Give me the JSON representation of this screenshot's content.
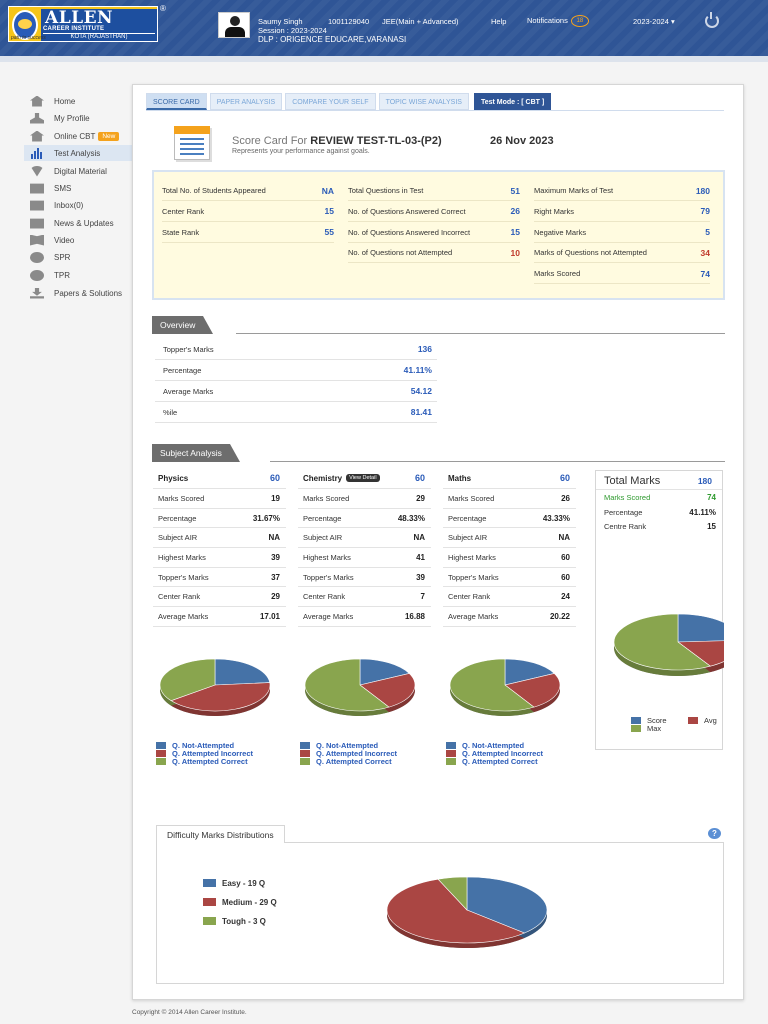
{
  "header": {
    "logo_big": "ALLEN",
    "logo_mid": "CAREER INSTITUTE",
    "logo_small": "KOTA (RAJASTHAN)",
    "logo_tagline": "path to success",
    "reg_mark": "®",
    "student_name": "Saumy Singh",
    "roll_no": "1001129040",
    "course": "JEE(Main + Advanced)",
    "session": "Session : 2023-2024",
    "center": "DLP : ORIGENCE EDUCARE,VARANASI",
    "help": "Help",
    "notifications": "Notifications",
    "notif_count": "18",
    "session_select": "2023-2024 ▾"
  },
  "sidebar": {
    "items": [
      {
        "label": "Home",
        "icon": "home-icon"
      },
      {
        "label": "My Profile",
        "icon": "user-icon"
      },
      {
        "label": "Online CBT",
        "icon": "home-icon",
        "badge": "New"
      },
      {
        "label": "Test Analysis",
        "icon": "bar-chart-icon",
        "active": true
      },
      {
        "label": "Digital Material",
        "icon": "wifi-icon"
      },
      {
        "label": "SMS",
        "icon": "mail-icon"
      },
      {
        "label": "Inbox(0)",
        "icon": "mail-icon"
      },
      {
        "label": "News & Updates",
        "icon": "mail-icon"
      },
      {
        "label": "Video",
        "icon": "book-icon"
      },
      {
        "label": "SPR",
        "icon": "pie-icon"
      },
      {
        "label": "TPR",
        "icon": "pie-icon"
      },
      {
        "label": "Papers & Solutions",
        "icon": "download-icon"
      }
    ]
  },
  "tabs": [
    {
      "label": "SCORE CARD",
      "active": true
    },
    {
      "label": "PAPER ANALYSIS"
    },
    {
      "label": "COMPARE YOUR SELF"
    },
    {
      "label": "TOPIC WISE ANALYSIS"
    },
    {
      "label": "Test Mode : [ CBT ]"
    }
  ],
  "scorecard": {
    "title_prefix": "Score Card For ",
    "test_name": "REVIEW TEST-TL-03-(P2)",
    "date": "26 Nov 2023",
    "subtitle": "Represents your performance against goals."
  },
  "summary": {
    "col1": [
      {
        "label": "Total No. of Students Appeared",
        "value": "NA"
      },
      {
        "label": "Center Rank",
        "value": "15"
      },
      {
        "label": "State Rank",
        "value": "55"
      }
    ],
    "col2": [
      {
        "label": "Total Questions in Test",
        "value": "51"
      },
      {
        "label": "No. of Questions Answered Correct",
        "value": "26"
      },
      {
        "label": "No. of Questions Answered Incorrect",
        "value": "15"
      },
      {
        "label": "No. of Questions not Attempted",
        "value": "10"
      }
    ],
    "col3": [
      {
        "label": "Maximum Marks of Test",
        "value": "180"
      },
      {
        "label": "Right Marks",
        "value": "79"
      },
      {
        "label": "Negative Marks",
        "value": "5"
      },
      {
        "label": "Marks of Questions not Attempted",
        "value": "34"
      },
      {
        "label": "Marks Scored",
        "value": "74"
      }
    ]
  },
  "overview": {
    "title": "Overview",
    "rows": [
      {
        "label": "Topper's Marks",
        "value": "136"
      },
      {
        "label": "Percentage",
        "value": "41.11%"
      },
      {
        "label": "Average Marks",
        "value": "54.12"
      },
      {
        "label": "%ile",
        "value": "81.41"
      }
    ]
  },
  "subject_analysis": {
    "title": "Subject Analysis",
    "view_detail": "View Detail",
    "subjects": [
      {
        "name": "Physics",
        "max": "60",
        "rows": [
          {
            "label": "Marks Scored",
            "value": "19"
          },
          {
            "label": "Percentage",
            "value": "31.67%"
          },
          {
            "label": "Subject AIR",
            "value": "NA"
          },
          {
            "label": "Highest Marks",
            "value": "39"
          },
          {
            "label": "Topper's Marks",
            "value": "37"
          },
          {
            "label": "Center Rank",
            "value": "29"
          },
          {
            "label": "Average Marks",
            "value": "17.01"
          }
        ]
      },
      {
        "name": "Chemistry",
        "max": "60",
        "rows": [
          {
            "label": "Marks Scored",
            "value": "29"
          },
          {
            "label": "Percentage",
            "value": "48.33%"
          },
          {
            "label": "Subject AIR",
            "value": "NA"
          },
          {
            "label": "Highest Marks",
            "value": "41"
          },
          {
            "label": "Topper's Marks",
            "value": "39"
          },
          {
            "label": "Center Rank",
            "value": "7"
          },
          {
            "label": "Average Marks",
            "value": "16.88"
          }
        ]
      },
      {
        "name": "Maths",
        "max": "60",
        "rows": [
          {
            "label": "Marks Scored",
            "value": "26"
          },
          {
            "label": "Percentage",
            "value": "43.33%"
          },
          {
            "label": "Subject AIR",
            "value": "NA"
          },
          {
            "label": "Highest Marks",
            "value": "60"
          },
          {
            "label": "Topper's Marks",
            "value": "60"
          },
          {
            "label": "Center Rank",
            "value": "24"
          },
          {
            "label": "Average Marks",
            "value": "20.22"
          }
        ]
      }
    ],
    "legend": [
      "Q. Not-Attempted",
      "Q. Attempted Incorrect",
      "Q. Attempted Correct"
    ]
  },
  "total_marks": {
    "title": "Total Marks",
    "max": "180",
    "rows": [
      {
        "label": "Marks Scored",
        "value": "74",
        "color": "#2e9a2e"
      },
      {
        "label": "Percentage",
        "value": "41.11%"
      },
      {
        "label": "Centre Rank",
        "value": "15"
      }
    ],
    "legend": [
      "Score",
      "Avg",
      "Max"
    ]
  },
  "difficulty": {
    "title": "Difficulty Marks Distributions",
    "legend": [
      "Easy - 19 Q",
      "Medium - 29 Q",
      "Tough - 3 Q"
    ]
  },
  "colors": {
    "blue": "#4572a7",
    "red": "#aa4643",
    "green": "#89a54e"
  },
  "chart_data": [
    {
      "type": "pie",
      "name": "Physics",
      "labels": [
        "Q. Not-Attempted",
        "Q. Attempted Incorrect",
        "Q. Attempted Correct"
      ],
      "values": [
        4,
        7,
        6
      ]
    },
    {
      "type": "pie",
      "name": "Chemistry",
      "labels": [
        "Q. Not-Attempted",
        "Q. Attempted Incorrect",
        "Q. Attempted Correct"
      ],
      "values": [
        3,
        4,
        10
      ]
    },
    {
      "type": "pie",
      "name": "Maths",
      "labels": [
        "Q. Not-Attempted",
        "Q. Attempted Incorrect",
        "Q. Attempted Correct"
      ],
      "values": [
        3,
        4,
        10
      ]
    },
    {
      "type": "pie",
      "name": "Total Marks",
      "labels": [
        "Score",
        "Avg",
        "Max"
      ],
      "values": [
        74,
        54.12,
        180
      ]
    },
    {
      "type": "pie",
      "name": "Difficulty",
      "labels": [
        "Easy - 19 Q",
        "Medium - 29 Q",
        "Tough - 3 Q"
      ],
      "values": [
        19,
        29,
        3
      ]
    }
  ],
  "footer": "Copyright © 2014 Allen Career Institute."
}
